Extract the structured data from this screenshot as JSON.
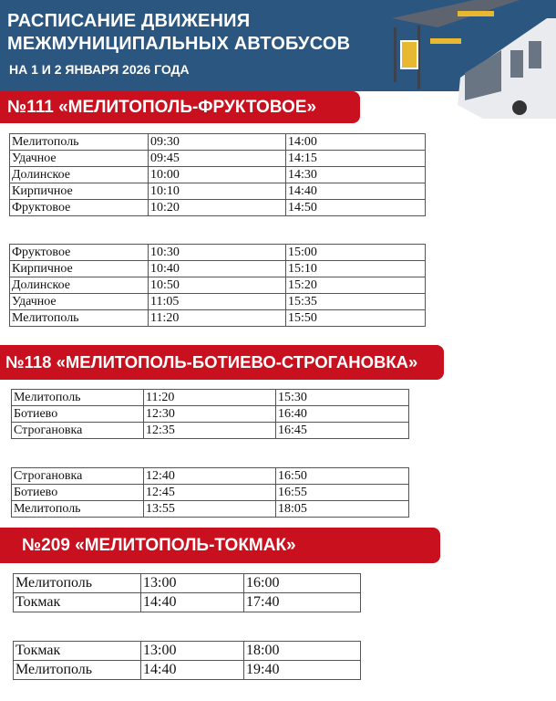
{
  "header": {
    "title_line1": "РАСПИСАНИЕ ДВИЖЕНИЯ",
    "title_line2": "МЕЖМУНИЦИПАЛЬНЫХ АВТОБУСОВ",
    "subtitle": "НА 1 И 2 ЯНВАРЯ 2026 ГОДА"
  },
  "colors": {
    "header_bg": "#2b5680",
    "banner_red": "#c8101e"
  },
  "routes": [
    {
      "title": "№111 «МЕЛИТОПОЛЬ-ФРУКТОВОЕ»",
      "tables": [
        [
          [
            "Мелитополь",
            "09:30",
            "14:00"
          ],
          [
            "Удачное",
            "09:45",
            "14:15"
          ],
          [
            "Долинское",
            "10:00",
            "14:30"
          ],
          [
            "Кирпичное",
            "10:10",
            "14:40"
          ],
          [
            "Фруктовое",
            "10:20",
            "14:50"
          ]
        ],
        [
          [
            "Фруктовое",
            "10:30",
            "15:00"
          ],
          [
            "Кирпичное",
            "10:40",
            "15:10"
          ],
          [
            "Долинское",
            "10:50",
            "15:20"
          ],
          [
            "Удачное",
            "11:05",
            "15:35"
          ],
          [
            "Мелитополь",
            "11:20",
            "15:50"
          ]
        ]
      ]
    },
    {
      "title": "№118 «МЕЛИТОПОЛЬ-БОТИЕВО-СТРОГАНОВКА»",
      "tables": [
        [
          [
            "Мелитополь",
            "11:20",
            "15:30"
          ],
          [
            "Ботиево",
            "12:30",
            "16:40"
          ],
          [
            "Строгановка",
            "12:35",
            "16:45"
          ]
        ],
        [
          [
            "Строгановка",
            "12:40",
            "16:50"
          ],
          [
            "Ботиево",
            "12:45",
            "16:55"
          ],
          [
            "Мелитополь",
            "13:55",
            "18:05"
          ]
        ]
      ]
    },
    {
      "title": "№209 «МЕЛИТОПОЛЬ-ТОКМАК»",
      "tables": [
        [
          [
            "Мелитополь",
            "13:00",
            "16:00"
          ],
          [
            "Токмак",
            "14:40",
            "17:40"
          ]
        ],
        [
          [
            "Токмак",
            "13:00",
            "18:00"
          ],
          [
            "Мелитополь",
            "14:40",
            "19:40"
          ]
        ]
      ]
    }
  ]
}
